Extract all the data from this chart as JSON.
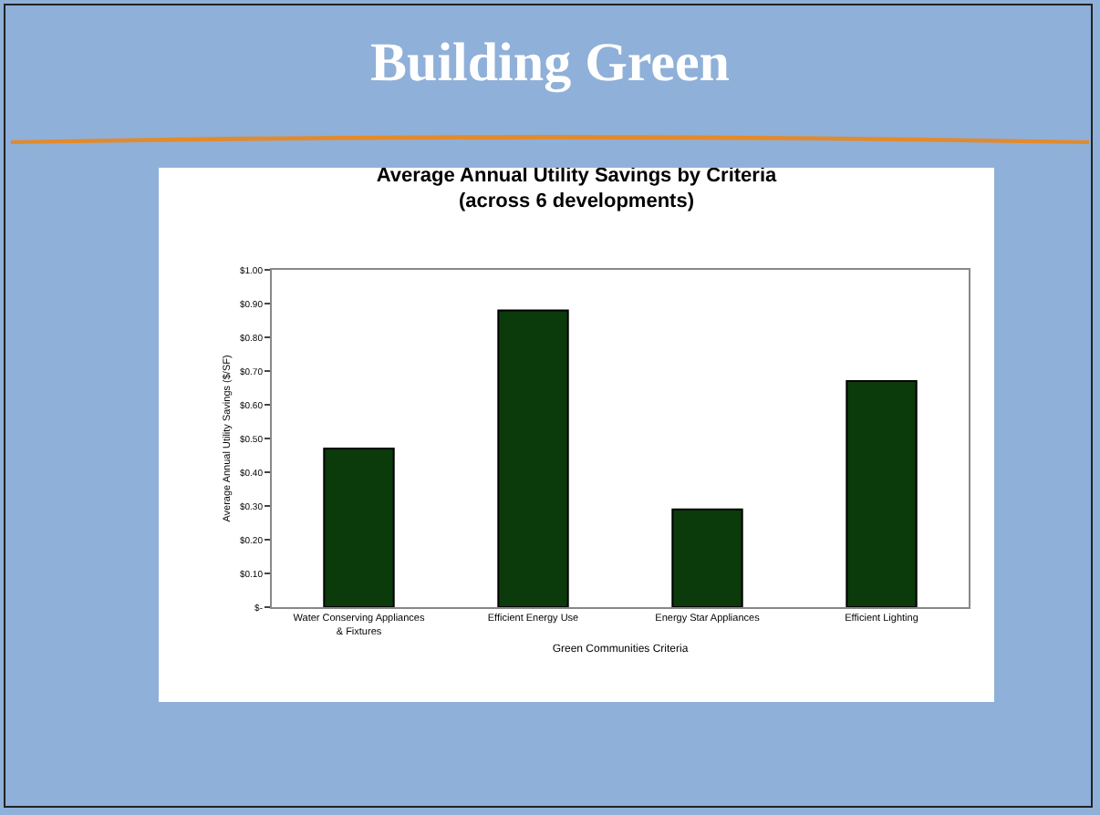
{
  "chart_data": {
    "type": "bar",
    "title": "Average Annual Utility Savings by Criteria",
    "subtitle": "(across 6 developments)",
    "xlabel": "Green Communities Criteria",
    "ylabel": "Average Annual Utility Savings ($/SF)",
    "annotations": [
      "Building Green"
    ],
    "categories": [
      "Water Conserving Appliances & Fixtures",
      "Efficient Energy Use",
      "Energy Star Appliances",
      "Efficient Lighting"
    ],
    "values": [
      0.47,
      0.88,
      0.29,
      0.67
    ],
    "color": "#0b3a0b",
    "ylim": [
      0,
      1
    ],
    "yticks": [
      {
        "value": 0,
        "label": "$-"
      },
      {
        "value": 0.1,
        "label": "$0.10"
      },
      {
        "value": 0.2,
        "label": "$0.20"
      },
      {
        "value": 0.3,
        "label": "$0.30"
      },
      {
        "value": 0.4,
        "label": "$0.40"
      },
      {
        "value": 0.5,
        "label": "$0.50"
      },
      {
        "value": 0.6,
        "label": "$0.60"
      },
      {
        "value": 0.7,
        "label": "$0.70"
      },
      {
        "value": 0.8,
        "label": "$0.80"
      },
      {
        "value": 0.9,
        "label": "$0.90"
      },
      {
        "value": 1,
        "label": "$1.00"
      }
    ],
    "grid": false
  }
}
